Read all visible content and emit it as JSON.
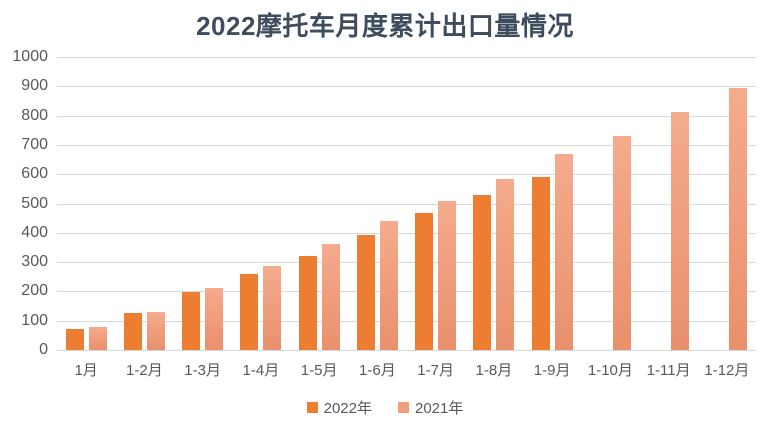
{
  "chart_data": {
    "type": "bar",
    "title": "2022摩托车月度累计出口量情况",
    "categories": [
      "1月",
      "1-2月",
      "1-3月",
      "1-4月",
      "1-5月",
      "1-6月",
      "1-7月",
      "1-8月",
      "1-9月",
      "1-10月",
      "1-11月",
      "1-12月"
    ],
    "series": [
      {
        "name": "2022年",
        "color": "#ED7D31",
        "values": [
          72,
          125,
          199,
          261,
          321,
          394,
          468,
          529,
          590,
          null,
          null,
          null
        ]
      },
      {
        "name": "2021年",
        "color": "#F09E7E",
        "color_top": "#F5AB8D",
        "color_bottom": "#E9906C",
        "values": [
          80,
          131,
          210,
          288,
          362,
          439,
          510,
          582,
          670,
          732,
          814,
          895
        ]
      }
    ],
    "xlabel": "",
    "ylabel": "",
    "ylim": [
      0,
      1000
    ],
    "ytick_step": 100,
    "grid": "horizontal",
    "legend_position": "bottom"
  },
  "style_colors": {
    "title_color": "#3E4C5E",
    "axis_label_color": "#595959",
    "gridline_color": "#D9D9D9",
    "background": "#FFFFFF"
  }
}
